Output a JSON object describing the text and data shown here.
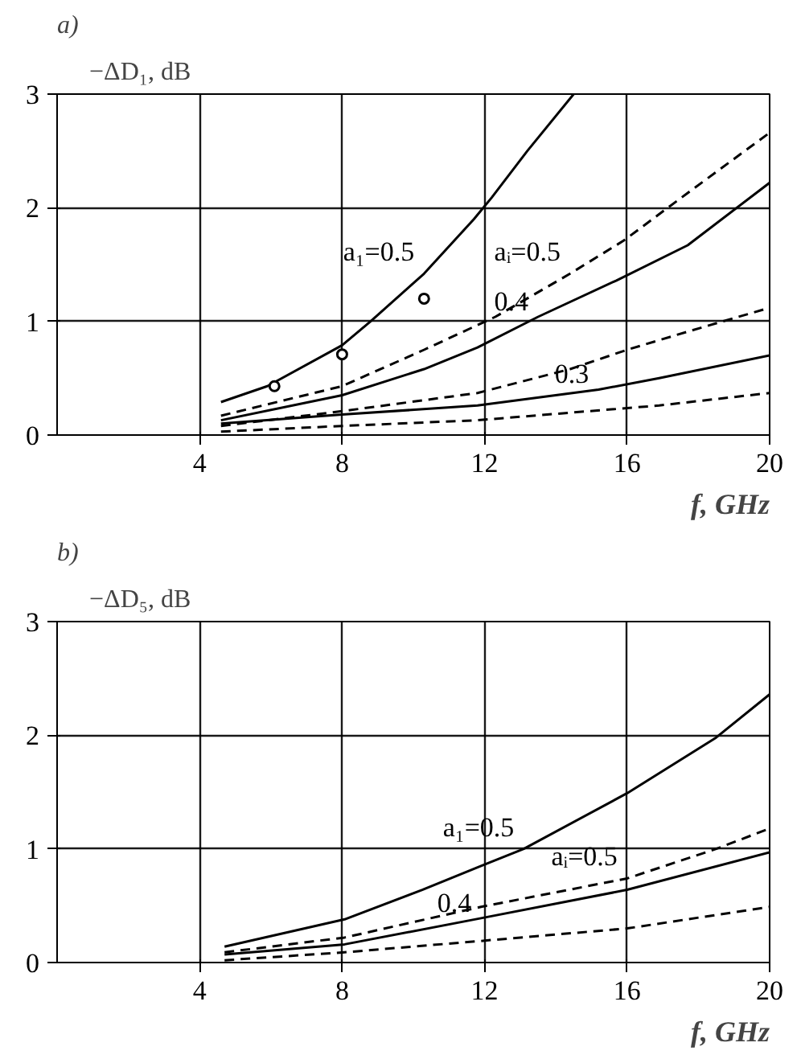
{
  "chart_data": [
    {
      "type": "line",
      "title": "a)",
      "ylabel": "−ΔD₁, dB",
      "xlabel": "f, GHz",
      "xlim": [
        0,
        20
      ],
      "ylim": [
        0,
        3
      ],
      "xticks": [
        4,
        8,
        12,
        16,
        20
      ],
      "yticks": [
        0,
        1,
        2,
        3
      ],
      "grid": true,
      "series": [
        {
          "name": "a₁=0.5",
          "color": "#000000",
          "line_style": "solid",
          "x": [
            4.6,
            5.9,
            8.0,
            8.8,
            10.3,
            11.7,
            12.2,
            13.2,
            14.5
          ],
          "values": [
            0.29,
            0.43,
            0.79,
            1.0,
            1.42,
            1.9,
            2.09,
            2.5,
            3.0
          ]
        },
        {
          "name": "aᵢ=0.5",
          "color": "#000000",
          "line_style": "dashed",
          "x": [
            4.6,
            8.0,
            10.3,
            12.3,
            14.4,
            15.9,
            17.7,
            20
          ],
          "values": [
            0.17,
            0.43,
            0.75,
            1.04,
            1.42,
            1.71,
            2.13,
            2.66
          ]
        },
        {
          "name": "0.4",
          "color": "#000000",
          "line_style": "solid",
          "x": [
            4.6,
            8.0,
            10.3,
            11.8,
            13.5,
            15.7,
            17.7,
            20
          ],
          "values": [
            0.13,
            0.35,
            0.58,
            0.77,
            1.04,
            1.36,
            1.67,
            2.22
          ]
        },
        {
          "color": "#000000",
          "line_style": "dashed",
          "x": [
            4.6,
            8.0,
            11.8,
            14.4,
            16.0,
            17.7,
            20
          ],
          "values": [
            0.08,
            0.21,
            0.37,
            0.58,
            0.75,
            0.91,
            1.12
          ]
        },
        {
          "name": "0.3",
          "color": "#000000",
          "line_style": "solid",
          "x": [
            4.6,
            8.0,
            11.8,
            15.2,
            16.9,
            20
          ],
          "values": [
            0.1,
            0.18,
            0.26,
            0.4,
            0.5,
            0.7
          ]
        },
        {
          "color": "#000000",
          "line_style": "dashed",
          "x": [
            4.6,
            8.0,
            11.8,
            16.9,
            20
          ],
          "values": [
            0.03,
            0.08,
            0.13,
            0.26,
            0.37
          ]
        },
        {
          "type": "scatter",
          "marker": "circle",
          "color": "#000000",
          "x": [
            6.1,
            8.0,
            10.3
          ],
          "values": [
            0.43,
            0.71,
            1.2
          ]
        }
      ]
    },
    {
      "type": "line",
      "title": "b)",
      "ylabel": "−ΔD₅, dB",
      "xlabel": "f, GHz",
      "xlim": [
        0,
        20
      ],
      "ylim": [
        0,
        3
      ],
      "xticks": [
        4,
        8,
        12,
        16,
        20
      ],
      "yticks": [
        0,
        1,
        2,
        3
      ],
      "grid": true,
      "series": [
        {
          "name": "a₁=0.5",
          "color": "#000000",
          "line_style": "solid",
          "x": [
            4.7,
            8.07,
            10.25,
            11.9,
            13.1,
            16.0,
            18.5,
            20
          ],
          "values": [
            0.14,
            0.38,
            0.64,
            0.85,
            1.0,
            1.49,
            1.98,
            2.36
          ]
        },
        {
          "name": "aᵢ=0.5",
          "color": "#000000",
          "line_style": "dashed",
          "x": [
            4.7,
            8.07,
            11.9,
            16.0,
            18.5,
            20
          ],
          "values": [
            0.09,
            0.22,
            0.49,
            0.74,
            1.0,
            1.18
          ]
        },
        {
          "name": "0.4",
          "color": "#000000",
          "line_style": "solid",
          "x": [
            4.7,
            8.07,
            11.9,
            16.0,
            20
          ],
          "values": [
            0.07,
            0.16,
            0.39,
            0.64,
            0.97
          ]
        },
        {
          "color": "#000000",
          "line_style": "dashed",
          "x": [
            4.7,
            8.07,
            11.9,
            16.0,
            20
          ],
          "values": [
            0.02,
            0.09,
            0.19,
            0.3,
            0.49
          ]
        }
      ]
    }
  ]
}
